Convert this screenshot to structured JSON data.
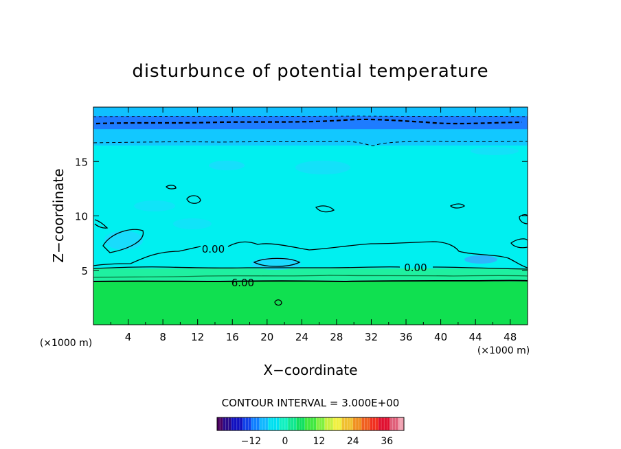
{
  "chart_data": {
    "type": "heatmap",
    "title": "disturbunce of potential temperature",
    "xlabel": "X−coordinate",
    "ylabel": "Z−coordinate",
    "x_unit_label_left": "(×1000 m)",
    "x_unit_label_right": "(×1000 m)",
    "xlim": [
      0,
      50
    ],
    "ylim": [
      0,
      20
    ],
    "x_ticks": [
      "4",
      "8",
      "12",
      "16",
      "20",
      "24",
      "28",
      "32",
      "36",
      "40",
      "44",
      "48"
    ],
    "y_ticks": [
      "5",
      "10",
      "15"
    ],
    "contour_interval": "CONTOUR INTERVAL = 3.000E+00",
    "contour_labels": [
      {
        "text": "0.00",
        "x": 13.8,
        "z": 7.0
      },
      {
        "text": "0.00",
        "x": 37.1,
        "z": 5.3
      },
      {
        "text": "6.00",
        "x": 17.2,
        "z": 3.9
      }
    ],
    "bands": [
      {
        "z_from": 0.0,
        "z_to": 4.0,
        "approx_value": 9,
        "color": "#10e050"
      },
      {
        "z_from": 4.0,
        "z_to": 5.2,
        "approx_value": 5,
        "color": "#1ff0a0"
      },
      {
        "z_from": 5.2,
        "z_to": 16.5,
        "approx_value": 1,
        "color": "#00f0f0"
      },
      {
        "z_from": 16.5,
        "z_to": 18.0,
        "approx_value": -3,
        "color": "#12c8ff"
      },
      {
        "z_from": 18.0,
        "z_to": 19.2,
        "approx_value": -8,
        "color": "#1e7cff"
      },
      {
        "z_from": 19.2,
        "z_to": 20.0,
        "approx_value": -3,
        "color": "#10c0ff"
      }
    ],
    "colorbar": {
      "ticks": [
        "−12",
        "0",
        "12",
        "24",
        "36"
      ],
      "tick_values": [
        -12,
        0,
        12,
        24,
        36
      ],
      "range": [
        -24,
        42
      ],
      "colors": [
        "#4a0060",
        "#2a0a8a",
        "#1010c0",
        "#1040e8",
        "#1080ff",
        "#10b8ff",
        "#00e0f0",
        "#10f0c0",
        "#10e890",
        "#10e060",
        "#40e840",
        "#80f040",
        "#c8f040",
        "#f0f040",
        "#f0c030",
        "#f09020",
        "#f06020",
        "#f03020",
        "#e01030",
        "#e0607a",
        "#f0a0b0"
      ]
    }
  }
}
